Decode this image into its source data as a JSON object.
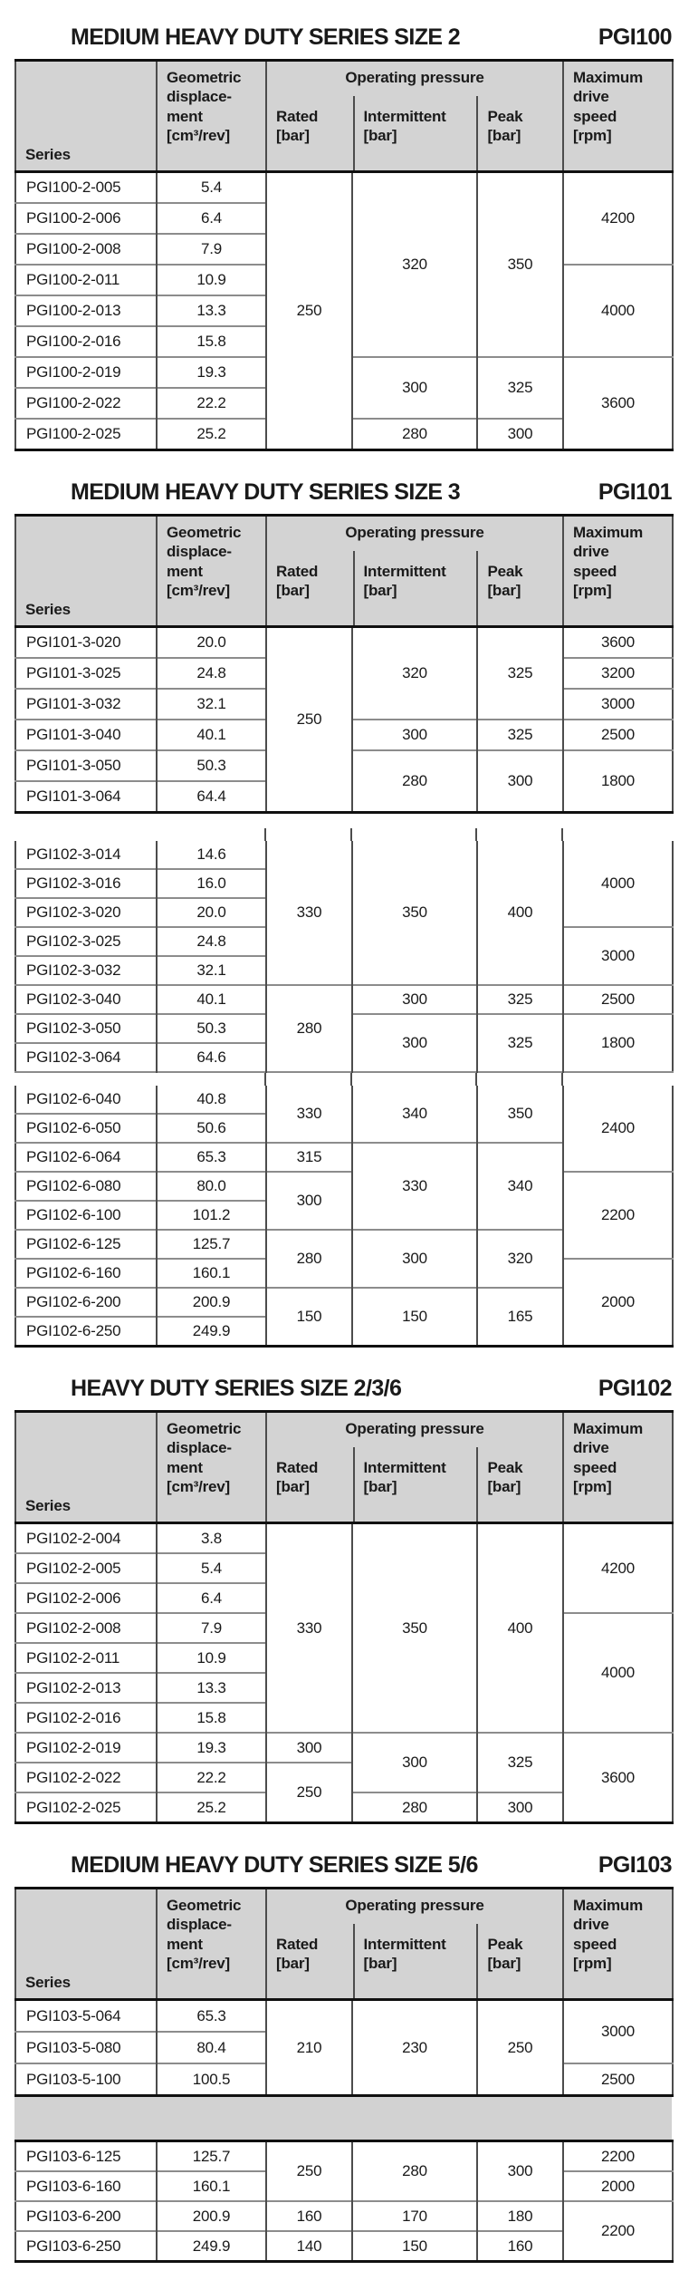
{
  "colors": {
    "header_bg": "#d3d3d3",
    "band_bg": "#d2d2d2",
    "thick": "#101010",
    "vline": "#4c4c4c",
    "hline": "#8c8c8c",
    "text": "#1a1a1a"
  },
  "column_headers": {
    "series": "Series",
    "displacement": "Geometric\ndisplace-\nment\n[cm³/rev]",
    "operating_pressure": "Operating pressure",
    "rated": "Rated\n[bar]",
    "intermittent": "Intermittent\n[bar]",
    "peak": "Peak\n[bar]",
    "max_speed": "Maximum\ndrive\nspeed\n[rpm]"
  },
  "sections": [
    {
      "id": "pgi100",
      "title": "MEDIUM HEAVY DUTY SERIES SIZE 2",
      "code": "PGI100",
      "show_header": true,
      "blocks": [
        {
          "type": "rows",
          "bottom": "thick",
          "rows": [
            [
              {
                "t": "PGI100-2-005",
                "k": "series"
              },
              {
                "t": "5.4"
              },
              {
                "t": "250",
                "rs": 9
              },
              {
                "t": "320",
                "rs": 6
              },
              {
                "t": "350",
                "rs": 6
              },
              {
                "t": "4200",
                "rs": 3
              }
            ],
            [
              {
                "t": "PGI100-2-006",
                "k": "series"
              },
              {
                "t": "6.4"
              }
            ],
            [
              {
                "t": "PGI100-2-008",
                "k": "series"
              },
              {
                "t": "7.9"
              }
            ],
            [
              {
                "t": "PGI100-2-011",
                "k": "series"
              },
              {
                "t": "10.9"
              },
              {
                "t": "4000",
                "rs": 3
              }
            ],
            [
              {
                "t": "PGI100-2-013",
                "k": "series"
              },
              {
                "t": "13.3"
              }
            ],
            [
              {
                "t": "PGI100-2-016",
                "k": "series"
              },
              {
                "t": "15.8"
              }
            ],
            [
              {
                "t": "PGI100-2-019",
                "k": "series"
              },
              {
                "t": "19.3"
              },
              {
                "t": "300",
                "rs": 2
              },
              {
                "t": "325",
                "rs": 2
              },
              {
                "t": "3600",
                "rs": 3
              }
            ],
            [
              {
                "t": "PGI100-2-022",
                "k": "series"
              },
              {
                "t": "22.2"
              }
            ],
            [
              {
                "t": "PGI100-2-025",
                "k": "series"
              },
              {
                "t": "25.2"
              },
              {
                "t": "280"
              },
              {
                "t": "300"
              }
            ]
          ]
        }
      ]
    },
    {
      "id": "pgi101",
      "title": "MEDIUM HEAVY DUTY SERIES SIZE 3",
      "code": "PGI101",
      "show_header": true,
      "blocks": [
        {
          "type": "rows",
          "bottom": "thick",
          "rows": [
            [
              {
                "t": "PGI101-3-020",
                "k": "series"
              },
              {
                "t": "20.0"
              },
              {
                "t": "250",
                "rs": 6
              },
              {
                "t": "320",
                "rs": 3
              },
              {
                "t": "325",
                "rs": 3
              },
              {
                "t": "3600"
              }
            ],
            [
              {
                "t": "PGI101-3-025",
                "k": "series"
              },
              {
                "t": "24.8"
              },
              {
                "t": "3200"
              }
            ],
            [
              {
                "t": "PGI101-3-032",
                "k": "series"
              },
              {
                "t": "32.1"
              },
              {
                "t": "3000"
              }
            ],
            [
              {
                "t": "PGI101-3-040",
                "k": "series"
              },
              {
                "t": "40.1"
              },
              {
                "t": "300"
              },
              {
                "t": "325"
              },
              {
                "t": "2500"
              }
            ],
            [
              {
                "t": "PGI101-3-050",
                "k": "series"
              },
              {
                "t": "50.3"
              },
              {
                "t": "280",
                "rs": 2
              },
              {
                "t": "300",
                "rs": 2
              },
              {
                "t": "1800",
                "rs": 2
              }
            ],
            [
              {
                "t": "PGI101-3-064",
                "k": "series"
              },
              {
                "t": "64.4"
              }
            ]
          ]
        }
      ]
    },
    {
      "id": "pgi102-continuation",
      "title": null,
      "code": null,
      "show_header": false,
      "blocks": [
        {
          "type": "gap"
        },
        {
          "type": "rows",
          "bottom": "thin",
          "rows": [
            [
              {
                "t": "PGI102-3-014",
                "k": "series"
              },
              {
                "t": "14.6"
              },
              {
                "t": "330",
                "rs": 5
              },
              {
                "t": "350",
                "rs": 5
              },
              {
                "t": "400",
                "rs": 5
              },
              {
                "t": "4000",
                "rs": 3
              }
            ],
            [
              {
                "t": "PGI102-3-016",
                "k": "series"
              },
              {
                "t": "16.0"
              }
            ],
            [
              {
                "t": "PGI102-3-020",
                "k": "series"
              },
              {
                "t": "20.0"
              }
            ],
            [
              {
                "t": "PGI102-3-025",
                "k": "series"
              },
              {
                "t": "24.8"
              },
              {
                "t": "3000",
                "rs": 2
              }
            ],
            [
              {
                "t": "PGI102-3-032",
                "k": "series"
              },
              {
                "t": "32.1"
              }
            ],
            [
              {
                "t": "PGI102-3-040",
                "k": "series"
              },
              {
                "t": "40.1"
              },
              {
                "t": "280",
                "rs": 3
              },
              {
                "t": "300"
              },
              {
                "t": "325"
              },
              {
                "t": "2500"
              }
            ],
            [
              {
                "t": "PGI102-3-050",
                "k": "series"
              },
              {
                "t": "50.3"
              },
              {
                "t": "300",
                "rs": 2
              },
              {
                "t": "325",
                "rs": 2
              },
              {
                "t": "1800",
                "rs": 2
              }
            ],
            [
              {
                "t": "PGI102-3-064",
                "k": "series"
              },
              {
                "t": "64.6"
              }
            ]
          ]
        },
        {
          "type": "gap"
        },
        {
          "type": "rows",
          "bottom": "thick",
          "rows": [
            [
              {
                "t": "PGI102-6-040",
                "k": "series"
              },
              {
                "t": "40.8"
              },
              {
                "t": "330",
                "rs": 2
              },
              {
                "t": "340",
                "rs": 2
              },
              {
                "t": "350",
                "rs": 2
              },
              {
                "t": "2400",
                "rs": 3
              }
            ],
            [
              {
                "t": "PGI102-6-050",
                "k": "series"
              },
              {
                "t": "50.6"
              }
            ],
            [
              {
                "t": "PGI102-6-064",
                "k": "series"
              },
              {
                "t": "65.3"
              },
              {
                "t": "315"
              },
              {
                "t": "330",
                "rs": 3
              },
              {
                "t": "340",
                "rs": 3
              }
            ],
            [
              {
                "t": "PGI102-6-080",
                "k": "series"
              },
              {
                "t": "80.0"
              },
              {
                "t": "300",
                "rs": 2
              },
              {
                "t": "2200",
                "rs": 3
              }
            ],
            [
              {
                "t": "PGI102-6-100",
                "k": "series"
              },
              {
                "t": "101.2"
              }
            ],
            [
              {
                "t": "PGI102-6-125",
                "k": "series"
              },
              {
                "t": "125.7"
              },
              {
                "t": "280",
                "rs": 2
              },
              {
                "t": "300",
                "rs": 2
              },
              {
                "t": "320",
                "rs": 2
              }
            ],
            [
              {
                "t": "PGI102-6-160",
                "k": "series"
              },
              {
                "t": "160.1"
              },
              {
                "t": "2000",
                "rs": 3
              }
            ],
            [
              {
                "t": "PGI102-6-200",
                "k": "series"
              },
              {
                "t": "200.9"
              },
              {
                "t": "150",
                "rs": 2
              },
              {
                "t": "150",
                "rs": 2
              },
              {
                "t": "165",
                "rs": 2
              }
            ],
            [
              {
                "t": "PGI102-6-250",
                "k": "series"
              },
              {
                "t": "249.9"
              }
            ]
          ]
        }
      ]
    },
    {
      "id": "pgi102",
      "title": "HEAVY DUTY SERIES SIZE 2/3/6",
      "code": "PGI102",
      "show_header": true,
      "blocks": [
        {
          "type": "rows",
          "bottom": "thick",
          "rows": [
            [
              {
                "t": "PGI102-2-004",
                "k": "series"
              },
              {
                "t": "3.8"
              },
              {
                "t": "330",
                "rs": 7
              },
              {
                "t": "350",
                "rs": 7
              },
              {
                "t": "400",
                "rs": 7
              },
              {
                "t": "4200",
                "rs": 3
              }
            ],
            [
              {
                "t": "PGI102-2-005",
                "k": "series"
              },
              {
                "t": "5.4"
              }
            ],
            [
              {
                "t": "PGI102-2-006",
                "k": "series"
              },
              {
                "t": "6.4"
              }
            ],
            [
              {
                "t": "PGI102-2-008",
                "k": "series"
              },
              {
                "t": "7.9"
              },
              {
                "t": "4000",
                "rs": 4
              }
            ],
            [
              {
                "t": "PGI102-2-011",
                "k": "series"
              },
              {
                "t": "10.9"
              }
            ],
            [
              {
                "t": "PGI102-2-013",
                "k": "series"
              },
              {
                "t": "13.3"
              }
            ],
            [
              {
                "t": "PGI102-2-016",
                "k": "series"
              },
              {
                "t": "15.8"
              }
            ],
            [
              {
                "t": "PGI102-2-019",
                "k": "series"
              },
              {
                "t": "19.3"
              },
              {
                "t": "300"
              },
              {
                "t": "300",
                "rs": 2
              },
              {
                "t": "325",
                "rs": 2
              },
              {
                "t": "3600",
                "rs": 3
              }
            ],
            [
              {
                "t": "PGI102-2-022",
                "k": "series"
              },
              {
                "t": "22.2"
              },
              {
                "t": "250",
                "rs": 2
              }
            ],
            [
              {
                "t": "PGI102-2-025",
                "k": "series"
              },
              {
                "t": "25.2"
              },
              {
                "t": "280"
              },
              {
                "t": "300"
              }
            ]
          ]
        }
      ]
    },
    {
      "id": "pgi103",
      "title": "MEDIUM HEAVY DUTY SERIES SIZE 5/6",
      "code": "PGI103",
      "show_header": true,
      "blocks": [
        {
          "type": "rows",
          "bottom": "thick",
          "rows": [
            [
              {
                "t": "PGI103-5-064",
                "k": "series"
              },
              {
                "t": "65.3"
              },
              {
                "t": "210",
                "rs": 3
              },
              {
                "t": "230",
                "rs": 3
              },
              {
                "t": "250",
                "rs": 3
              },
              {
                "t": "3000",
                "rs": 2
              }
            ],
            [
              {
                "t": "PGI103-5-080",
                "k": "series"
              },
              {
                "t": "80.4"
              }
            ],
            [
              {
                "t": "PGI103-5-100",
                "k": "series"
              },
              {
                "t": "100.5"
              },
              {
                "t": "2500"
              }
            ]
          ]
        },
        {
          "type": "band"
        },
        {
          "type": "rows",
          "top": "thick",
          "bottom": "thick",
          "rows": [
            [
              {
                "t": "PGI103-6-125",
                "k": "series"
              },
              {
                "t": "125.7"
              },
              {
                "t": "250",
                "rs": 2
              },
              {
                "t": "280",
                "rs": 2
              },
              {
                "t": "300",
                "rs": 2
              },
              {
                "t": "2200"
              }
            ],
            [
              {
                "t": "PGI103-6-160",
                "k": "series"
              },
              {
                "t": "160.1"
              },
              {
                "t": "2000"
              }
            ],
            [
              {
                "t": "PGI103-6-200",
                "k": "series"
              },
              {
                "t": "200.9"
              },
              {
                "t": "160"
              },
              {
                "t": "170"
              },
              {
                "t": "180"
              },
              {
                "t": "2200",
                "rs": 2
              }
            ],
            [
              {
                "t": "PGI103-6-250",
                "k": "series"
              },
              {
                "t": "249.9"
              },
              {
                "t": "140"
              },
              {
                "t": "150"
              },
              {
                "t": "160"
              }
            ]
          ]
        }
      ]
    }
  ]
}
